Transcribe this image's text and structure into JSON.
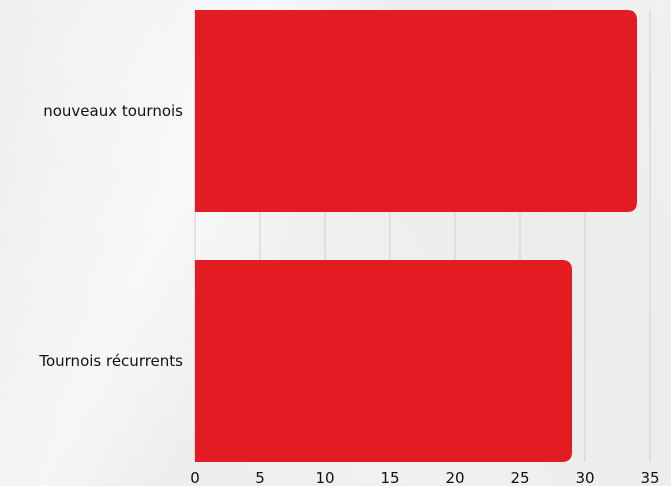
{
  "chart_data": {
    "type": "bar",
    "orientation": "horizontal",
    "categories": [
      "nouveaux tournois",
      "Tournois récurrents"
    ],
    "values": [
      34,
      29
    ],
    "title": "",
    "xlabel": "",
    "ylabel": "",
    "xlim": [
      0,
      35
    ],
    "ticks": [
      "0",
      "5",
      "10",
      "15",
      "20",
      "25",
      "30",
      "35"
    ],
    "grid": "vertical",
    "bar_color": "#e31b23"
  }
}
